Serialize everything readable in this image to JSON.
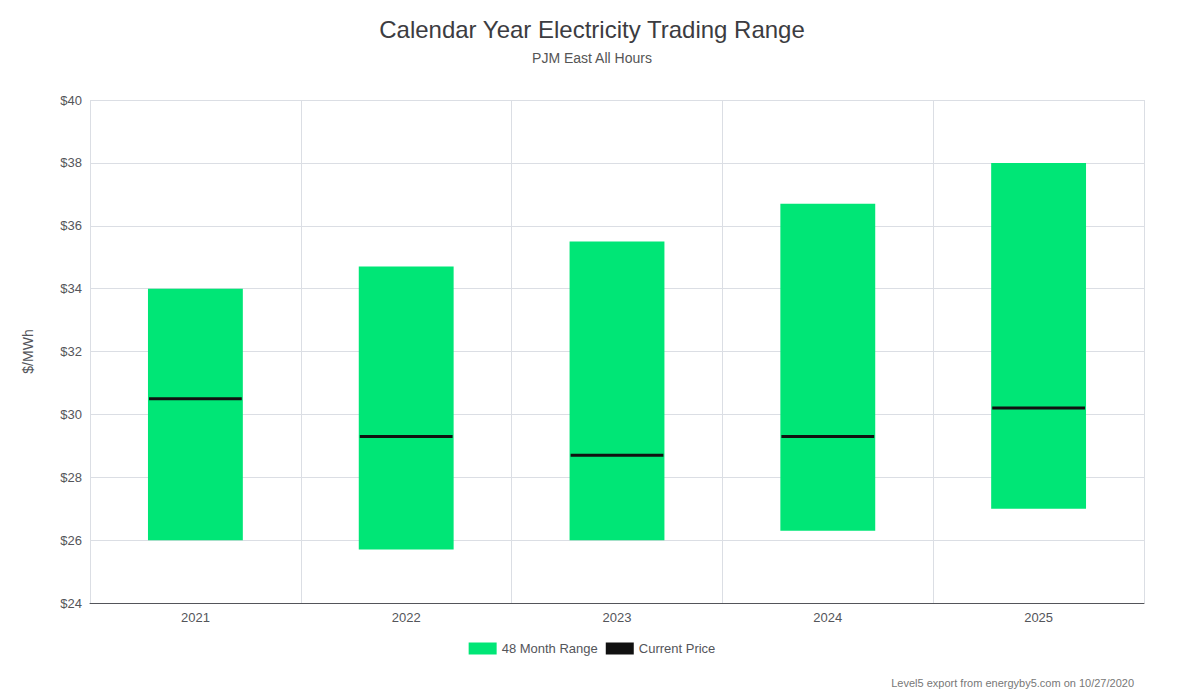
{
  "chart_data": {
    "type": "range_bar",
    "title": "Calendar Year Electricity Trading Range",
    "subtitle": "PJM East All Hours",
    "ylabel": "$/MWh",
    "annotations": [
      "Level5 export from energyby5.com on 10/27/2020"
    ],
    "categories": [
      "2021",
      "2022",
      "2023",
      "2024",
      "2025"
    ],
    "series": [
      {
        "name": "48 Month Range",
        "type": "range",
        "color": "#00E676",
        "low": [
          26.0,
          25.7,
          26.0,
          26.3,
          27.0
        ],
        "high": [
          34.0,
          34.7,
          35.5,
          36.7,
          38.0
        ]
      },
      {
        "name": "Current Price",
        "type": "level",
        "color": "#111111",
        "values": [
          30.5,
          29.3,
          28.7,
          29.3,
          30.2
        ]
      }
    ],
    "ylim": [
      24,
      40
    ],
    "yticks": [
      {
        "value": 24,
        "label": "$24"
      },
      {
        "value": 26,
        "label": "$26"
      },
      {
        "value": 28,
        "label": "$28"
      },
      {
        "value": 30,
        "label": "$30"
      },
      {
        "value": 32,
        "label": "$32"
      },
      {
        "value": 34,
        "label": "$34"
      },
      {
        "value": 36,
        "label": "$36"
      },
      {
        "value": 38,
        "label": "$38"
      },
      {
        "value": 40,
        "label": "$40"
      }
    ],
    "grid": true,
    "legend": "bottom"
  }
}
